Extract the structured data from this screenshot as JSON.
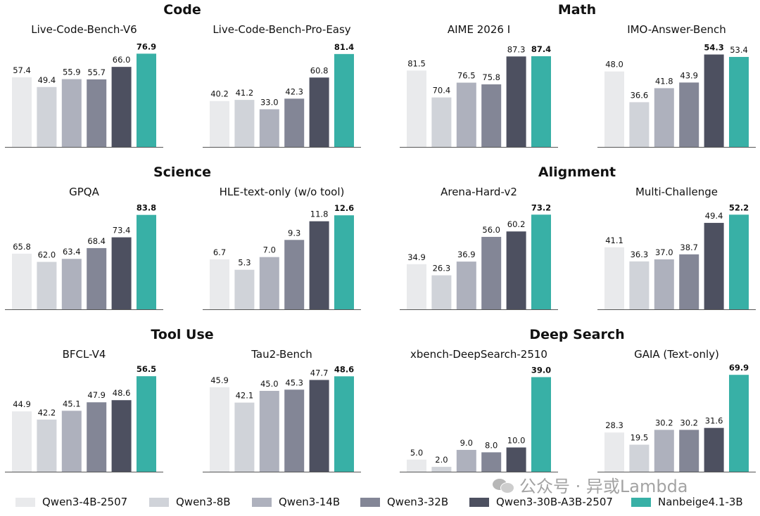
{
  "groups": [
    {
      "title": "Code"
    },
    {
      "title": "Math"
    },
    {
      "title": "Science"
    },
    {
      "title": "Alignment"
    },
    {
      "title": "Tool Use"
    },
    {
      "title": "Deep Search"
    }
  ],
  "legend": [
    {
      "name": "Qwen3-4B-2507",
      "color": "#e9eaec"
    },
    {
      "name": "Qwen3-8B",
      "color": "#d0d3d9"
    },
    {
      "name": "Qwen3-14B",
      "color": "#aeb1bd"
    },
    {
      "name": "Qwen3-32B",
      "color": "#838696"
    },
    {
      "name": "Qwen3-30B-A3B-2507",
      "color": "#4d5060"
    },
    {
      "name": "Nanbeige4.1-3B",
      "color": "#38b0a6"
    }
  ],
  "watermark": "公众号 · 异或Lambda",
  "chart_data": [
    {
      "type": "bar",
      "title": "Live-Code-Bench-V6",
      "group": "Code",
      "categories": [
        "Qwen3-4B-2507",
        "Qwen3-8B",
        "Qwen3-14B",
        "Qwen3-32B",
        "Qwen3-30B-A3B-2507",
        "Nanbeige4.1-3B"
      ],
      "values": [
        57.4,
        49.4,
        55.9,
        55.7,
        66.0,
        76.9
      ],
      "labels": [
        "57.4",
        "49.4",
        "55.9",
        "55.7",
        "66.0",
        "76.9"
      ],
      "best_index": 5,
      "ylim": [
        0,
        80
      ]
    },
    {
      "type": "bar",
      "title": "Live-Code-Bench-Pro-Easy",
      "group": "Code",
      "categories": [
        "Qwen3-4B-2507",
        "Qwen3-8B",
        "Qwen3-14B",
        "Qwen3-32B",
        "Qwen3-30B-A3B-2507",
        "Nanbeige4.1-3B"
      ],
      "values": [
        40.2,
        41.2,
        33.0,
        42.3,
        60.8,
        81.4
      ],
      "labels": [
        "40.2",
        "41.2",
        "33.0",
        "42.3",
        "60.8",
        "81.4"
      ],
      "best_index": 5,
      "ylim": [
        0,
        85
      ]
    },
    {
      "type": "bar",
      "title": "AIME 2026 I",
      "group": "Math",
      "categories": [
        "Qwen3-4B-2507",
        "Qwen3-8B",
        "Qwen3-14B",
        "Qwen3-32B",
        "Qwen3-30B-A3B-2507",
        "Nanbeige4.1-3B"
      ],
      "values": [
        81.5,
        70.4,
        76.5,
        75.8,
        87.3,
        87.4
      ],
      "labels": [
        "81.5",
        "70.4",
        "76.5",
        "75.8",
        "87.3",
        "87.4"
      ],
      "best_index": 5,
      "ylim": [
        50,
        90
      ]
    },
    {
      "type": "bar",
      "title": "IMO-Answer-Bench",
      "group": "Math",
      "categories": [
        "Qwen3-4B-2507",
        "Qwen3-8B",
        "Qwen3-14B",
        "Qwen3-32B",
        "Qwen3-30B-A3B-2507",
        "Nanbeige4.1-3B"
      ],
      "values": [
        48.0,
        36.6,
        41.8,
        43.9,
        54.3,
        53.4
      ],
      "labels": [
        "48.0",
        "36.6",
        "41.8",
        "43.9",
        "54.3",
        "53.4"
      ],
      "best_index": 4,
      "ylim": [
        20,
        56
      ]
    },
    {
      "type": "bar",
      "title": "GPQA",
      "group": "Science",
      "categories": [
        "Qwen3-4B-2507",
        "Qwen3-8B",
        "Qwen3-14B",
        "Qwen3-32B",
        "Qwen3-30B-A3B-2507",
        "Nanbeige4.1-3B"
      ],
      "values": [
        65.8,
        62.0,
        63.4,
        68.4,
        73.4,
        83.8
      ],
      "labels": [
        "65.8",
        "62.0",
        "63.4",
        "68.4",
        "73.4",
        "83.8"
      ],
      "best_index": 5,
      "ylim": [
        40,
        85
      ]
    },
    {
      "type": "bar",
      "title": "HLE-text-only (w/o tool)",
      "group": "Science",
      "categories": [
        "Qwen3-4B-2507",
        "Qwen3-8B",
        "Qwen3-14B",
        "Qwen3-32B",
        "Qwen3-30B-A3B-2507",
        "Nanbeige4.1-3B"
      ],
      "values": [
        6.7,
        5.3,
        7.0,
        9.3,
        11.8,
        12.6
      ],
      "labels": [
        "6.7",
        "5.3",
        "7.0",
        "9.3",
        "11.8",
        "12.6"
      ],
      "best_index": 5,
      "ylim": [
        0,
        13
      ]
    },
    {
      "type": "bar",
      "title": "Arena-Hard-v2",
      "group": "Alignment",
      "categories": [
        "Qwen3-4B-2507",
        "Qwen3-8B",
        "Qwen3-14B",
        "Qwen3-32B",
        "Qwen3-30B-A3B-2507",
        "Nanbeige4.1-3B"
      ],
      "values": [
        34.9,
        26.3,
        36.9,
        56.0,
        60.2,
        73.2
      ],
      "labels": [
        "34.9",
        "26.3",
        "36.9",
        "56.0",
        "60.2",
        "73.2"
      ],
      "best_index": 5,
      "ylim": [
        0,
        75
      ]
    },
    {
      "type": "bar",
      "title": "Multi-Challenge",
      "group": "Alignment",
      "categories": [
        "Qwen3-4B-2507",
        "Qwen3-8B",
        "Qwen3-14B",
        "Qwen3-32B",
        "Qwen3-30B-A3B-2507",
        "Nanbeige4.1-3B"
      ],
      "values": [
        41.1,
        36.3,
        37.0,
        38.7,
        49.4,
        52.2
      ],
      "labels": [
        "41.1",
        "36.3",
        "37.0",
        "38.7",
        "49.4",
        "52.2"
      ],
      "best_index": 5,
      "ylim": [
        20,
        53
      ]
    },
    {
      "type": "bar",
      "title": "BFCL-V4",
      "group": "Tool Use",
      "categories": [
        "Qwen3-4B-2507",
        "Qwen3-8B",
        "Qwen3-14B",
        "Qwen3-32B",
        "Qwen3-30B-A3B-2507",
        "Nanbeige4.1-3B"
      ],
      "values": [
        44.9,
        42.2,
        45.1,
        47.9,
        48.6,
        56.5
      ],
      "labels": [
        "44.9",
        "42.2",
        "45.1",
        "47.9",
        "48.6",
        "56.5"
      ],
      "best_index": 5,
      "ylim": [
        25,
        57
      ]
    },
    {
      "type": "bar",
      "title": "Tau2-Bench",
      "group": "Tool Use",
      "categories": [
        "Qwen3-4B-2507",
        "Qwen3-8B",
        "Qwen3-14B",
        "Qwen3-32B",
        "Qwen3-30B-A3B-2507",
        "Nanbeige4.1-3B"
      ],
      "values": [
        45.9,
        42.1,
        45.0,
        45.3,
        47.7,
        48.6
      ],
      "labels": [
        "45.9",
        "42.1",
        "45.0",
        "45.3",
        "47.7",
        "48.6"
      ],
      "best_index": 5,
      "ylim": [
        25,
        49
      ]
    },
    {
      "type": "bar",
      "title": "xbench-DeepSearch-2510",
      "group": "Deep Search",
      "categories": [
        "Qwen3-4B-2507",
        "Qwen3-8B",
        "Qwen3-14B",
        "Qwen3-32B",
        "Qwen3-30B-A3B-2507",
        "Nanbeige4.1-3B"
      ],
      "values": [
        5.0,
        2.0,
        9.0,
        8.0,
        10.0,
        39.0
      ],
      "labels": [
        "5.0",
        "2.0",
        "9.0",
        "8.0",
        "10.0",
        "39.0"
      ],
      "best_index": 5,
      "ylim": [
        0,
        40
      ]
    },
    {
      "type": "bar",
      "title": "GAIA (Text-only)",
      "group": "Deep Search",
      "categories": [
        "Qwen3-4B-2507",
        "Qwen3-8B",
        "Qwen3-14B",
        "Qwen3-32B",
        "Qwen3-30B-A3B-2507",
        "Nanbeige4.1-3B"
      ],
      "values": [
        28.3,
        19.5,
        30.2,
        30.2,
        31.6,
        69.9
      ],
      "labels": [
        "28.3",
        "19.5",
        "30.2",
        "30.2",
        "31.6",
        "69.9"
      ],
      "best_index": 5,
      "ylim": [
        0,
        70
      ]
    }
  ]
}
